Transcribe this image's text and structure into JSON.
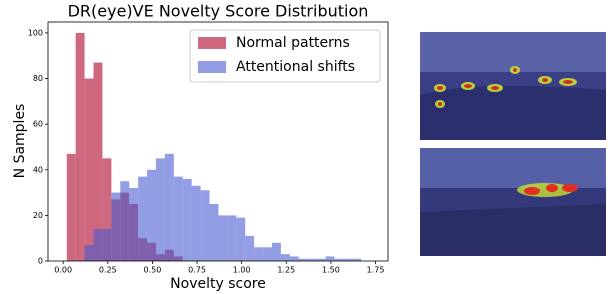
{
  "chart_data": {
    "type": "histogram",
    "title": "DR(eye)VE Novelty Score Distribution",
    "xlabel": "Novelty score",
    "ylabel": "N Samples",
    "xlim": [
      -0.085,
      1.82
    ],
    "ylim": [
      0,
      104.8
    ],
    "xticks": [
      {
        "value": 0,
        "label": "0.00"
      },
      {
        "value": 0.25,
        "label": "0.25"
      },
      {
        "value": 0.5,
        "label": "0.50"
      },
      {
        "value": 0.75,
        "label": "0.75"
      },
      {
        "value": 1,
        "label": "1.00"
      },
      {
        "value": 1.25,
        "label": "1.25"
      },
      {
        "value": 1.5,
        "label": "1.50"
      },
      {
        "value": 1.75,
        "label": "1.75"
      }
    ],
    "yticks": [
      0,
      20,
      40,
      60,
      80,
      100
    ],
    "legend": "upper right",
    "series": [
      {
        "name": "Normal patterns",
        "color": "#c44e67",
        "bins": [
          0.02,
          0.07,
          0.12,
          0.17,
          0.22,
          0.27,
          0.32,
          0.37,
          0.42,
          0.47,
          0.52,
          0.57,
          0.62,
          0.67
        ],
        "values": [
          47,
          100,
          80,
          87,
          45,
          27,
          30,
          25,
          10,
          8,
          3,
          5,
          2
        ]
      },
      {
        "name": "Attentional shifts",
        "color": "#4a5bd0",
        "bins": [
          0.12,
          0.17,
          0.22,
          0.27,
          0.32,
          0.37,
          0.42,
          0.47,
          0.52,
          0.57,
          0.62,
          0.67,
          0.72,
          0.77,
          0.82,
          0.87,
          0.92,
          0.97,
          1.02,
          1.07,
          1.12,
          1.17,
          1.22,
          1.27,
          1.32,
          1.37,
          1.42,
          1.47,
          1.52,
          1.57,
          1.62,
          1.67
        ],
        "values": [
          7,
          14,
          14,
          30,
          35,
          32,
          37,
          40,
          45,
          47,
          37,
          36,
          33,
          31,
          25,
          20,
          20,
          19,
          11,
          6,
          6,
          8,
          3,
          2,
          1,
          1,
          1,
          2,
          1,
          1,
          1
        ]
      }
    ]
  }
}
